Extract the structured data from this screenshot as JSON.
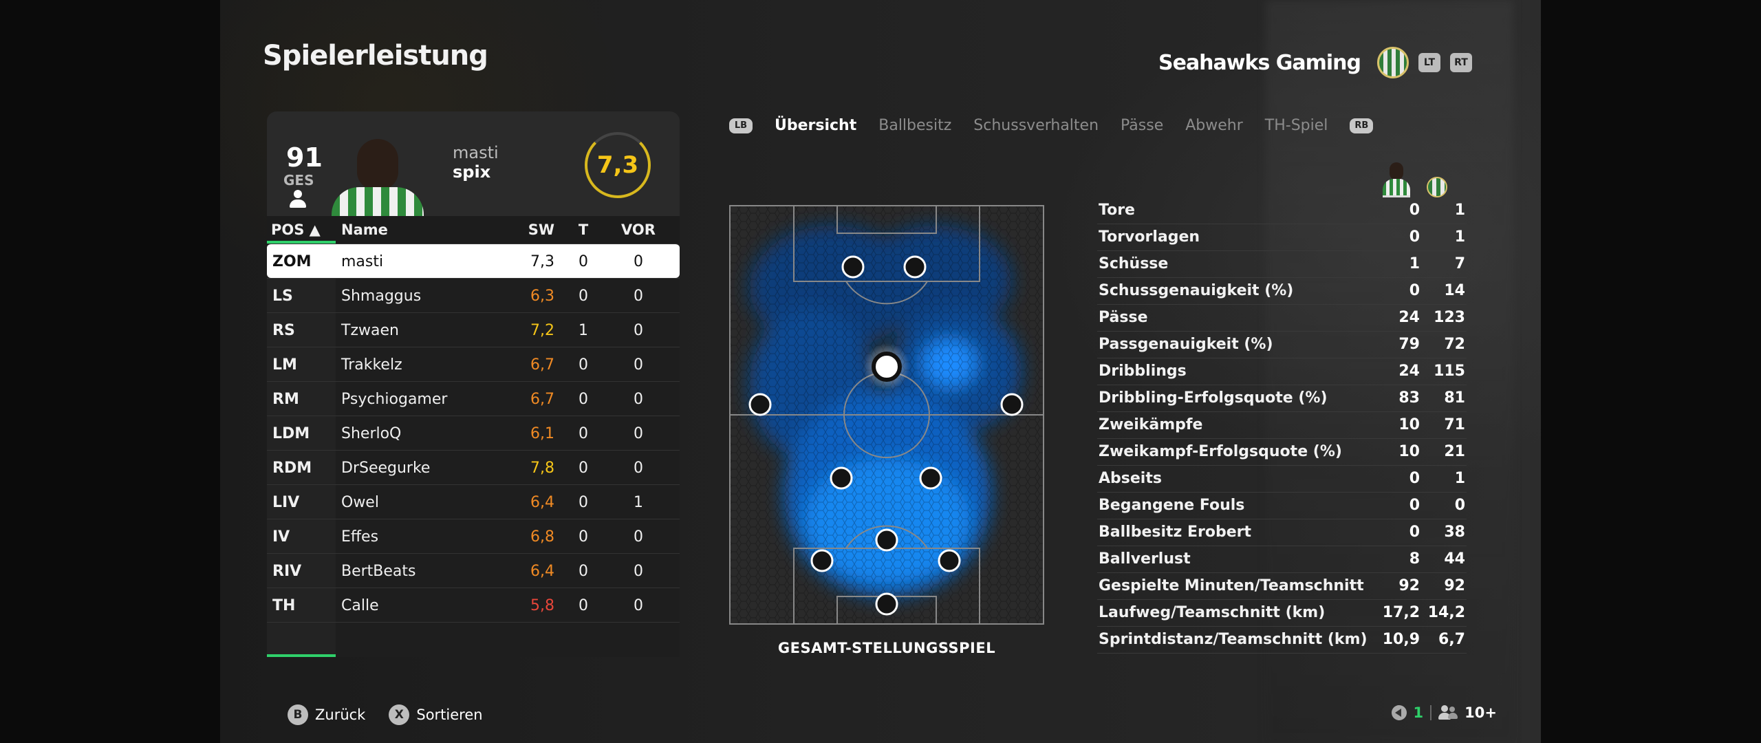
{
  "title": "Spielerleistung",
  "team": {
    "name": "Seahawks Gaming",
    "lt": "LT",
    "rt": "RT"
  },
  "player": {
    "ovr": "91",
    "ovr_label": "GES",
    "first_name": "masti",
    "last_name": "spix",
    "rating": "7,3"
  },
  "table": {
    "headers": {
      "pos": "POS ▲",
      "name": "Name",
      "sw": "SW",
      "t": "T",
      "vor": "VOR"
    },
    "rows": [
      {
        "pos": "ZOM",
        "name": "masti",
        "sw": "7,3",
        "t": "0",
        "vor": "0",
        "color": "#111111"
      },
      {
        "pos": "LS",
        "name": "Shmaggus",
        "sw": "6,3",
        "t": "0",
        "vor": "0",
        "color": "#f08a24"
      },
      {
        "pos": "RS",
        "name": "Tzwaen",
        "sw": "7,2",
        "t": "1",
        "vor": "0",
        "color": "#f5c518"
      },
      {
        "pos": "LM",
        "name": "Trakkelz",
        "sw": "6,7",
        "t": "0",
        "vor": "0",
        "color": "#f08a24"
      },
      {
        "pos": "RM",
        "name": "Psychiogamer",
        "sw": "6,7",
        "t": "0",
        "vor": "0",
        "color": "#f08a24"
      },
      {
        "pos": "LDM",
        "name": "SherloQ",
        "sw": "6,1",
        "t": "0",
        "vor": "0",
        "color": "#f08a24"
      },
      {
        "pos": "RDM",
        "name": "DrSeegurke",
        "sw": "7,8",
        "t": "0",
        "vor": "0",
        "color": "#f5c518"
      },
      {
        "pos": "LIV",
        "name": "Owel",
        "sw": "6,4",
        "t": "0",
        "vor": "1",
        "color": "#f08a24"
      },
      {
        "pos": "IV",
        "name": "Effes",
        "sw": "6,8",
        "t": "0",
        "vor": "0",
        "color": "#f08a24"
      },
      {
        "pos": "RIV",
        "name": "BertBeats",
        "sw": "6,4",
        "t": "0",
        "vor": "0",
        "color": "#f08a24"
      },
      {
        "pos": "TH",
        "name": "Calle",
        "sw": "5,8",
        "t": "0",
        "vor": "0",
        "color": "#e8463a"
      }
    ]
  },
  "tabs": {
    "lb": "LB",
    "rb": "RB",
    "items": [
      "Übersicht",
      "Ballbesitz",
      "Schussverhalten",
      "Pässe",
      "Abwehr",
      "TH-Spiel"
    ]
  },
  "pitch_label": "GESAMT-STELLUNGSSPIEL",
  "stats": [
    {
      "label": "Tore",
      "v1": "0",
      "v2": "1"
    },
    {
      "label": "Torvorlagen",
      "v1": "0",
      "v2": "1"
    },
    {
      "label": "Schüsse",
      "v1": "1",
      "v2": "7"
    },
    {
      "label": "Schussgenauigkeit (%)",
      "v1": "0",
      "v2": "14"
    },
    {
      "label": "Pässe",
      "v1": "24",
      "v2": "123"
    },
    {
      "label": "Passgenauigkeit (%)",
      "v1": "79",
      "v2": "72"
    },
    {
      "label": "Dribblings",
      "v1": "24",
      "v2": "115"
    },
    {
      "label": "Dribbling-Erfolgsquote (%)",
      "v1": "83",
      "v2": "81"
    },
    {
      "label": "Zweikämpfe",
      "v1": "10",
      "v2": "71"
    },
    {
      "label": "Zweikampf-Erfolgsquote (%)",
      "v1": "10",
      "v2": "21"
    },
    {
      "label": "Abseits",
      "v1": "0",
      "v2": "1"
    },
    {
      "label": "Begangene Fouls",
      "v1": "0",
      "v2": "0"
    },
    {
      "label": "Ballbesitz Erobert",
      "v1": "0",
      "v2": "38"
    },
    {
      "label": "Ballverlust",
      "v1": "8",
      "v2": "44"
    },
    {
      "label": "Gespielte Minuten/Teamschnitt",
      "v1": "92",
      "v2": "92"
    },
    {
      "label": "Laufweg/Teamschnitt (km)",
      "v1": "17,2",
      "v2": "14,2"
    },
    {
      "label": "Sprintdistanz/Teamschnitt (km)",
      "v1": "10,9",
      "v2": "6,7"
    }
  ],
  "footer": {
    "back_btn": "B",
    "back_label": "Zurück",
    "sort_btn": "X",
    "sort_label": "Sortieren",
    "count": "1",
    "group": "10+"
  },
  "colors": {
    "accent_green": "#2fd06a",
    "rating_yellow": "#f5c518",
    "heat_blue": "#1e90ff"
  }
}
